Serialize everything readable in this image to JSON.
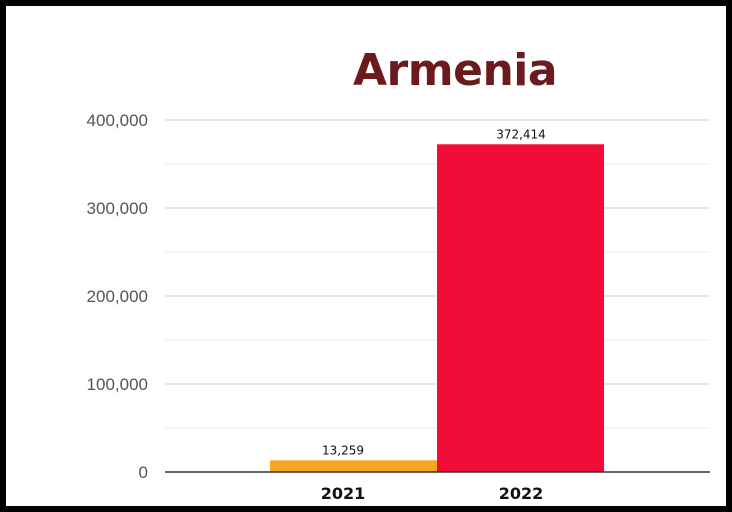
{
  "chart_data": {
    "type": "bar",
    "title": "Armenia",
    "categories": [
      "2021",
      "2022"
    ],
    "values": [
      13259,
      372414
    ],
    "data_labels": [
      "13,259",
      "372,414"
    ],
    "y_ticks": [
      0,
      100000,
      200000,
      300000,
      400000
    ],
    "y_tick_labels": [
      "0",
      "100,000",
      "200,000",
      "300,000",
      "400,000"
    ],
    "ylim": [
      0,
      400000
    ],
    "grid": true,
    "colors": {
      "bars": [
        "#F5A623",
        "#F20C38"
      ],
      "title": "#6B1A1E",
      "grid": "#D9D9D9",
      "axis": "#333333"
    }
  }
}
